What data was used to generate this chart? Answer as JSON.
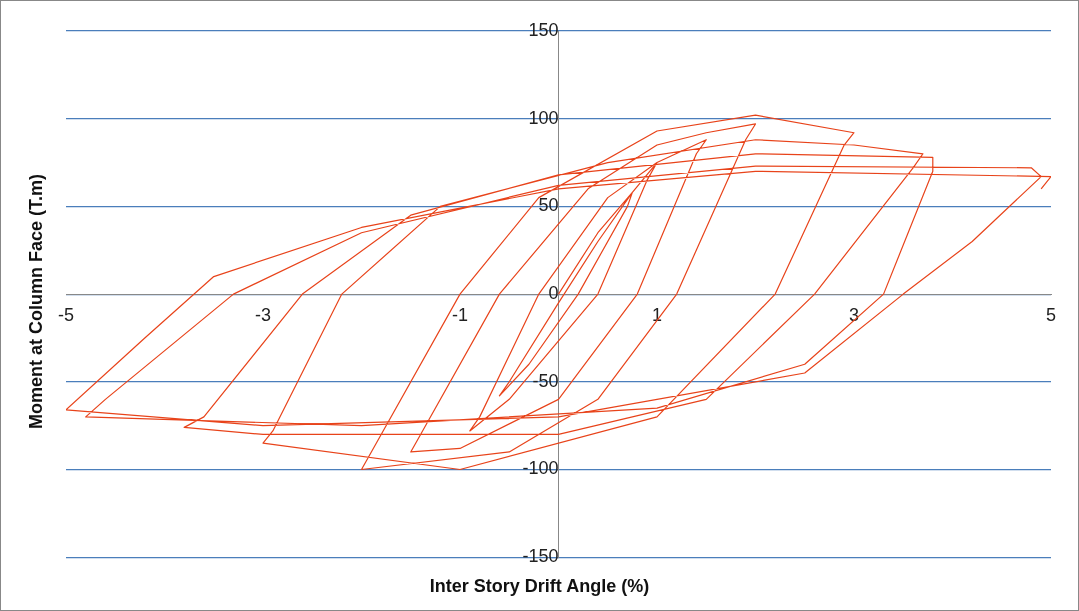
{
  "chart_data": {
    "type": "line",
    "xlabel": "Inter Story Drift Angle (%)",
    "ylabel": "Moment at Column Face (T.m)",
    "xlim": [
      -5,
      5
    ],
    "xticks": [
      -5,
      -3,
      -1,
      1,
      3,
      5
    ],
    "ylim": [
      -150,
      150
    ],
    "yticks": [
      -150,
      -100,
      -50,
      0,
      50,
      100,
      150
    ],
    "grid": "y",
    "marker": "none",
    "line_style": "solid",
    "series": [
      {
        "color": "#e8431a",
        "x": [
          0,
          0.4,
          0.75,
          0.7,
          0.2,
          -0.3,
          -0.6,
          -0.5,
          0,
          0.4,
          0.75,
          1,
          0.9,
          0.4,
          -0.5,
          -0.9,
          -0.8,
          -0.2,
          0.5,
          1,
          1.5,
          1.4,
          0.8,
          0,
          -1,
          -1.5,
          -1.4,
          -0.6,
          0.3,
          1,
          1.5,
          2,
          1.9,
          1.2,
          0.4,
          -0.5,
          -2,
          -1.9,
          -1,
          -0.2,
          1,
          2,
          3,
          2.9,
          2.2,
          1,
          -1,
          -3,
          -2.9,
          -2.2,
          -1.2,
          0.5,
          2,
          3,
          3.7,
          3.6,
          2.6,
          1.5,
          0,
          -3,
          -3.8,
          -3.6,
          -2.6,
          -1.5,
          0,
          2,
          3.8,
          3.8,
          3.3,
          2.5,
          1,
          -2,
          -4.8,
          -4.6,
          -3.3,
          -2,
          0,
          2,
          4.8,
          4.9,
          4.2,
          3.5,
          2.5,
          0,
          -3,
          -5,
          -4.2,
          -3.5,
          -2,
          0,
          2,
          5,
          4.9
        ],
        "values": [
          0,
          35,
          58,
          50,
          0,
          -40,
          -58,
          -50,
          -5,
          30,
          58,
          75,
          65,
          0,
          -60,
          -78,
          -70,
          0,
          55,
          75,
          88,
          80,
          0,
          -60,
          -88,
          -90,
          -80,
          0,
          60,
          85,
          92,
          97,
          88,
          0,
          -60,
          -90,
          -100,
          -90,
          0,
          55,
          93,
          102,
          92,
          85,
          0,
          -70,
          -100,
          -85,
          -78,
          0,
          50,
          75,
          88,
          85,
          80,
          72,
          0,
          -60,
          -80,
          -80,
          -76,
          -70,
          0,
          45,
          68,
          80,
          78,
          70,
          0,
          -40,
          -65,
          -75,
          -70,
          -60,
          0,
          35,
          62,
          73,
          72,
          67,
          30,
          0,
          -45,
          -70,
          -75,
          -66,
          -25,
          10,
          38,
          60,
          70,
          67,
          60
        ]
      }
    ]
  }
}
